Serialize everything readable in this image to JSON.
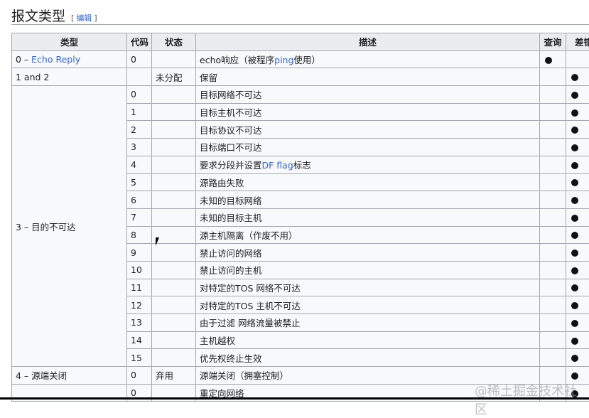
{
  "heading": {
    "title": "报文类型",
    "edit": "编辑",
    "bracket_open": "[",
    "bracket_close": "]"
  },
  "columns": [
    "类型",
    "代码",
    "状态",
    "描述",
    "查询",
    "差错"
  ],
  "rows": [
    {
      "type": "0 – ",
      "type_link": "Echo Reply",
      "code": "0",
      "status": "",
      "desc": "echo响应（被程序",
      "desc_link": "ping",
      "desc_post": "使用）",
      "query": true,
      "error": false
    },
    {
      "type": "1 and 2",
      "code": "",
      "status": "未分配",
      "desc": "保留",
      "query": false,
      "error": true
    },
    {
      "type": "3 – 目的不可达",
      "code": "0",
      "status": "",
      "desc": "目标网络不可达",
      "query": false,
      "error": true,
      "span": 16
    },
    {
      "code": "1",
      "desc": "目标主机不可达",
      "error": true
    },
    {
      "code": "2",
      "desc": "目标协议不可达",
      "error": true
    },
    {
      "code": "3",
      "desc": "目标端口不可达",
      "error": true
    },
    {
      "code": "4",
      "desc": "要求分段并设置",
      "desc_link": "DF flag",
      "desc_post": "标志",
      "error": true
    },
    {
      "code": "5",
      "desc": "源路由失败",
      "error": true
    },
    {
      "code": "6",
      "desc": "未知的目标网络",
      "error": true
    },
    {
      "code": "7",
      "desc": "未知的目标主机",
      "error": true
    },
    {
      "code": "8",
      "desc": "源主机隔离（作废不用）",
      "error": true
    },
    {
      "code": "9",
      "desc": "禁止访问的网络",
      "error": true
    },
    {
      "code": "10",
      "desc": "禁止访问的主机",
      "error": true
    },
    {
      "code": "11",
      "desc": "对特定的TOS 网络不可达",
      "error": true
    },
    {
      "code": "12",
      "desc": "对特定的TOS 主机不可达",
      "error": true
    },
    {
      "code": "13",
      "desc": "由于过滤 网络流量被禁止",
      "error": true
    },
    {
      "code": "14",
      "desc": "主机越权",
      "error": true
    },
    {
      "code": "15",
      "desc": "优先权终止生效",
      "error": true
    },
    {
      "type": "4 – 源端关闭",
      "code": "0",
      "status": "弃用",
      "desc": "源端关闭（拥塞控制）",
      "error": true
    },
    {
      "type": "",
      "code": "0",
      "status": "",
      "desc": "重定向网络",
      "error": true
    }
  ],
  "watermark": "@稀土掘金技术社区"
}
